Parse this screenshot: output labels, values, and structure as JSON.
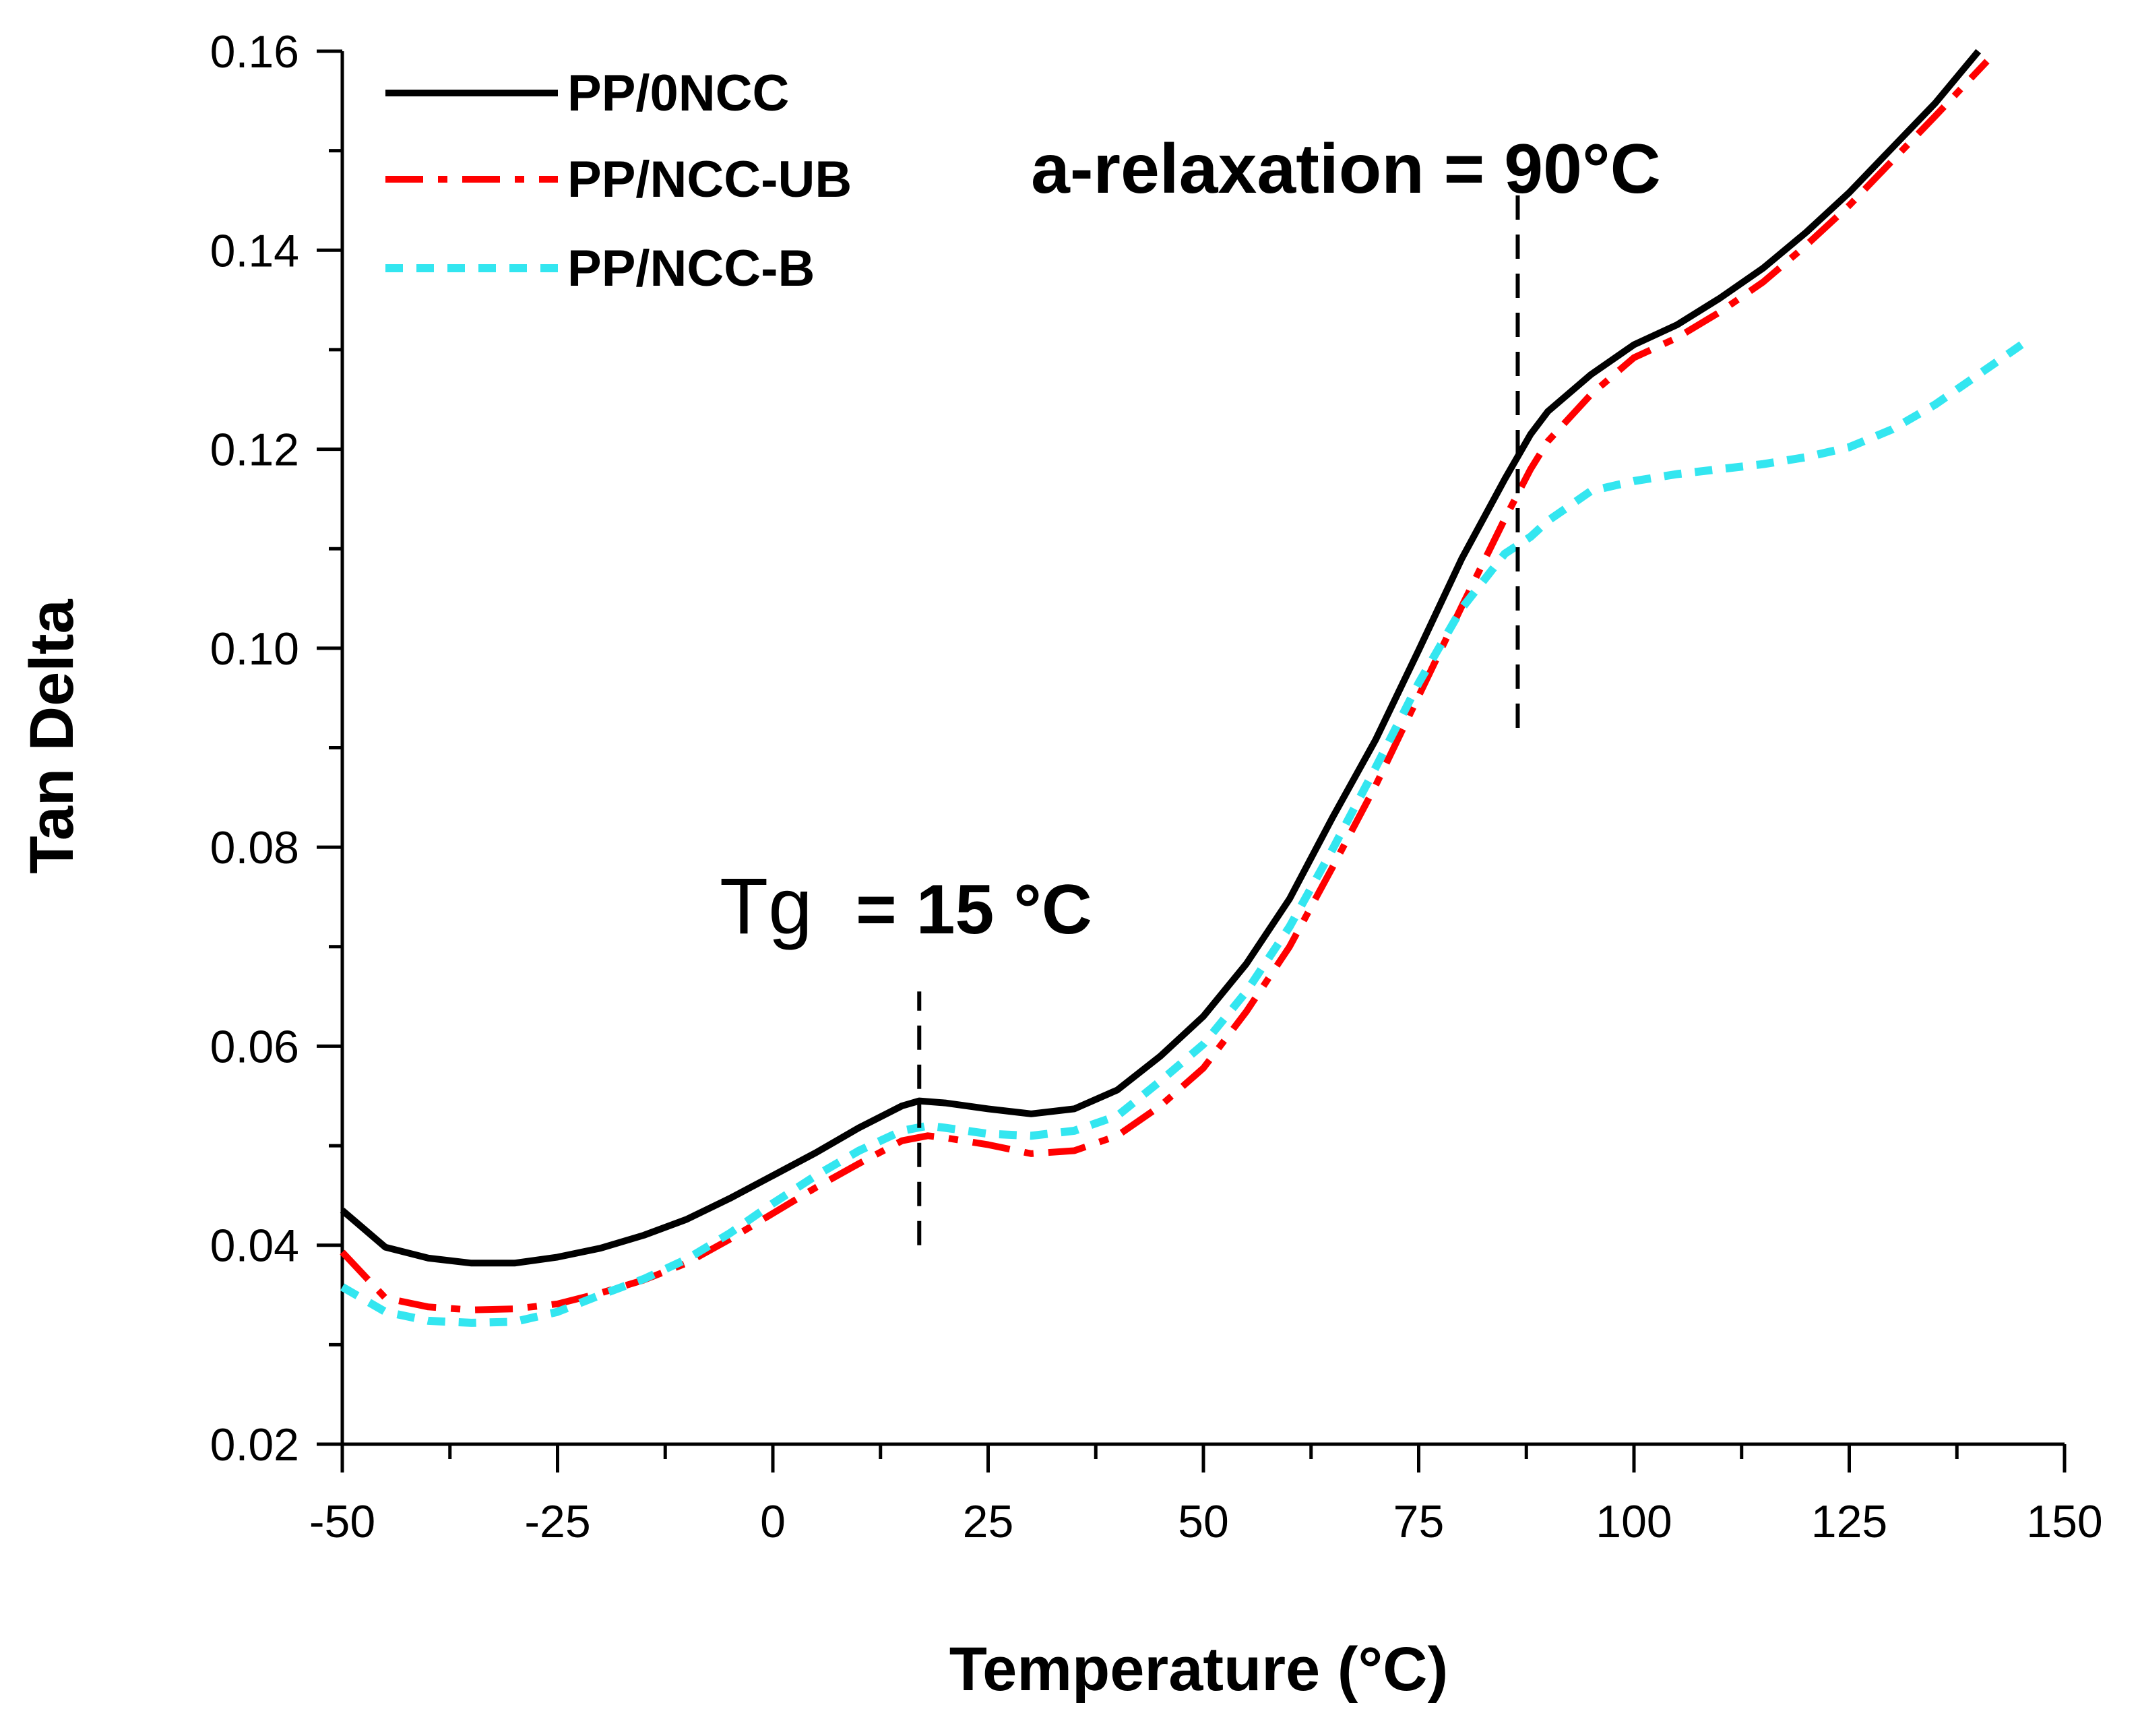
{
  "chart_data": {
    "type": "line",
    "title": "",
    "xlabel": "Temperature (°C)",
    "ylabel": "Tan Delta",
    "xlim": [
      -50,
      150
    ],
    "ylim": [
      0.02,
      0.16
    ],
    "xticks": [
      "-50",
      "-25",
      "0",
      "25",
      "50",
      "75",
      "100",
      "125",
      "150"
    ],
    "yticks": [
      "0.02",
      "0.04",
      "0.06",
      "0.08",
      "0.10",
      "0.12",
      "0.14",
      "0.16"
    ],
    "xtick_values": [
      -50,
      -25,
      0,
      25,
      50,
      75,
      100,
      125,
      150
    ],
    "ytick_values": [
      0.02,
      0.04,
      0.06,
      0.08,
      0.1,
      0.12,
      0.14,
      0.16
    ],
    "grid": false,
    "legend_position": "top-left",
    "series": [
      {
        "name": "PP/0NCC",
        "color": "#000000",
        "style": "solid",
        "points": [
          [
            -50,
            0.0435
          ],
          [
            -45,
            0.0398
          ],
          [
            -40,
            0.0387
          ],
          [
            -35,
            0.0382
          ],
          [
            -30,
            0.0382
          ],
          [
            -25,
            0.0388
          ],
          [
            -20,
            0.0397
          ],
          [
            -15,
            0.041
          ],
          [
            -10,
            0.0426
          ],
          [
            -5,
            0.0447
          ],
          [
            0,
            0.047
          ],
          [
            5,
            0.0493
          ],
          [
            10,
            0.0518
          ],
          [
            15,
            0.054
          ],
          [
            17,
            0.0545
          ],
          [
            20,
            0.0543
          ],
          [
            25,
            0.0537
          ],
          [
            30,
            0.0532
          ],
          [
            35,
            0.0537
          ],
          [
            40,
            0.0556
          ],
          [
            45,
            0.059
          ],
          [
            50,
            0.063
          ],
          [
            55,
            0.0683
          ],
          [
            60,
            0.0748
          ],
          [
            65,
            0.083
          ],
          [
            70,
            0.0908
          ],
          [
            75,
            0.0998
          ],
          [
            80,
            0.109
          ],
          [
            85,
            0.117
          ],
          [
            88,
            0.1215
          ],
          [
            90,
            0.1238
          ],
          [
            95,
            0.1275
          ],
          [
            100,
            0.1305
          ],
          [
            105,
            0.1325
          ],
          [
            110,
            0.1352
          ],
          [
            115,
            0.1382
          ],
          [
            120,
            0.1418
          ],
          [
            125,
            0.1458
          ],
          [
            130,
            0.1503
          ],
          [
            135,
            0.1548
          ],
          [
            140,
            0.16
          ]
        ]
      },
      {
        "name": "PP/NCC-UB",
        "color": "#ff0000",
        "style": "dashdot",
        "points": [
          [
            -50,
            0.0393
          ],
          [
            -45,
            0.0347
          ],
          [
            -40,
            0.0338
          ],
          [
            -35,
            0.0335
          ],
          [
            -30,
            0.0336
          ],
          [
            -25,
            0.0341
          ],
          [
            -20,
            0.0352
          ],
          [
            -15,
            0.0365
          ],
          [
            -10,
            0.0382
          ],
          [
            -5,
            0.0406
          ],
          [
            0,
            0.0432
          ],
          [
            5,
            0.0458
          ],
          [
            10,
            0.0482
          ],
          [
            15,
            0.0505
          ],
          [
            18,
            0.051
          ],
          [
            20,
            0.0508
          ],
          [
            25,
            0.0501
          ],
          [
            30,
            0.0492
          ],
          [
            35,
            0.0495
          ],
          [
            40,
            0.051
          ],
          [
            45,
            0.054
          ],
          [
            50,
            0.0578
          ],
          [
            55,
            0.0635
          ],
          [
            60,
            0.07
          ],
          [
            65,
            0.078
          ],
          [
            70,
            0.0862
          ],
          [
            75,
            0.0952
          ],
          [
            80,
            0.1042
          ],
          [
            85,
            0.113
          ],
          [
            88,
            0.118
          ],
          [
            90,
            0.1208
          ],
          [
            95,
            0.1255
          ],
          [
            100,
            0.1292
          ],
          [
            105,
            0.1312
          ],
          [
            110,
            0.1338
          ],
          [
            115,
            0.1368
          ],
          [
            120,
            0.1405
          ],
          [
            125,
            0.1445
          ],
          [
            130,
            0.149
          ],
          [
            135,
            0.1535
          ],
          [
            141,
            0.159
          ]
        ]
      },
      {
        "name": "PP/NCC-B",
        "color": "#33e6f0",
        "style": "dotted",
        "points": [
          [
            -50,
            0.0358
          ],
          [
            -45,
            0.0333
          ],
          [
            -40,
            0.0324
          ],
          [
            -35,
            0.0322
          ],
          [
            -30,
            0.0323
          ],
          [
            -25,
            0.0333
          ],
          [
            -20,
            0.035
          ],
          [
            -15,
            0.0366
          ],
          [
            -10,
            0.0386
          ],
          [
            -5,
            0.0412
          ],
          [
            0,
            0.0442
          ],
          [
            5,
            0.047
          ],
          [
            10,
            0.0495
          ],
          [
            15,
            0.0515
          ],
          [
            18,
            0.052
          ],
          [
            20,
            0.0518
          ],
          [
            25,
            0.0512
          ],
          [
            30,
            0.051
          ],
          [
            35,
            0.0515
          ],
          [
            40,
            0.053
          ],
          [
            45,
            0.0565
          ],
          [
            50,
            0.0602
          ],
          [
            55,
            0.0655
          ],
          [
            60,
            0.072
          ],
          [
            65,
            0.0798
          ],
          [
            70,
            0.088
          ],
          [
            75,
            0.0965
          ],
          [
            80,
            0.104
          ],
          [
            85,
            0.1095
          ],
          [
            88,
            0.1112
          ],
          [
            90,
            0.1128
          ],
          [
            95,
            0.1158
          ],
          [
            100,
            0.1168
          ],
          [
            105,
            0.1175
          ],
          [
            110,
            0.118
          ],
          [
            115,
            0.1185
          ],
          [
            120,
            0.1192
          ],
          [
            125,
            0.1202
          ],
          [
            130,
            0.122
          ],
          [
            135,
            0.1245
          ],
          [
            140,
            0.1275
          ],
          [
            145,
            0.1305
          ]
        ]
      }
    ],
    "annotations": [
      {
        "id": "tg",
        "prefix": "Tg",
        "text": "= 15 °C",
        "marker_x": 17,
        "marker_y_range": [
          0.04,
          0.0655
        ]
      },
      {
        "id": "alpha",
        "text": "a-relaxation = 90°C",
        "marker_x": 86.5,
        "marker_y_range": [
          0.092,
          0.147
        ]
      }
    ]
  }
}
